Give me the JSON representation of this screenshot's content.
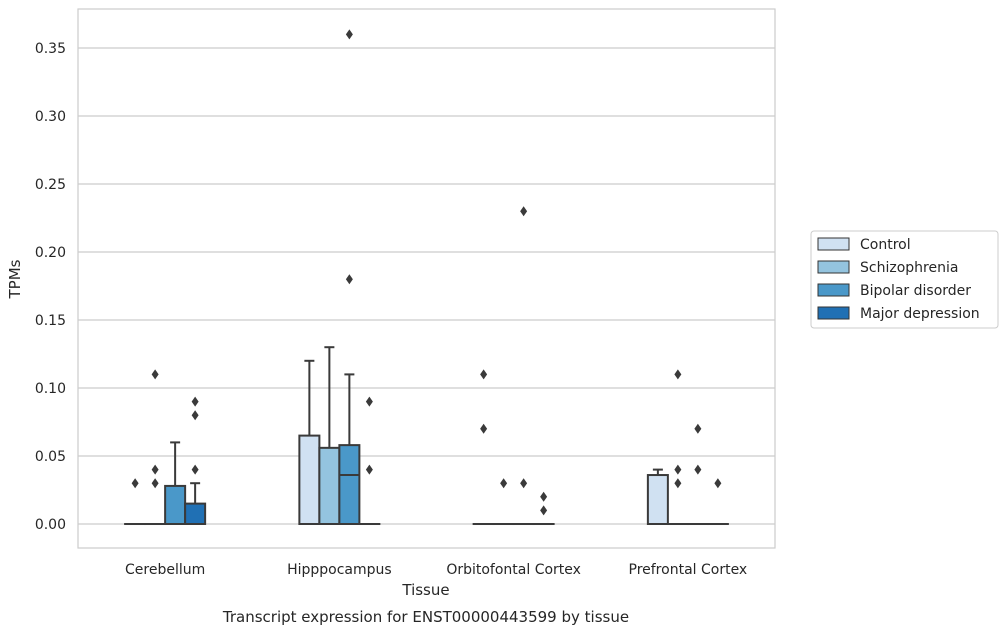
{
  "chart_data": {
    "type": "box",
    "title": "",
    "caption": "Transcript expression for ENST00000443599 by tissue",
    "xlabel": "Tissue",
    "ylabel": "TPMs",
    "ylim": [
      -0.018,
      0.378
    ],
    "yticks": [
      "0.00",
      "0.05",
      "0.10",
      "0.15",
      "0.20",
      "0.25",
      "0.30",
      "0.35"
    ],
    "grid": "horizontal",
    "legend_position": "right",
    "categories": [
      "Cerebellum",
      "Hipppocampus",
      "Orbitofontal Cortex",
      "Prefrontal Cortex"
    ],
    "series": [
      {
        "name": "Control",
        "color": "#d0e1f2",
        "boxes": [
          {
            "q1": 0,
            "median": 0,
            "q3": 0,
            "whisker_low": 0,
            "whisker_high": 0,
            "outliers": [
              0.03
            ]
          },
          {
            "q1": 0,
            "median": 0,
            "q3": 0.065,
            "whisker_low": 0,
            "whisker_high": 0.12,
            "outliers": []
          },
          {
            "q1": 0,
            "median": 0,
            "q3": 0,
            "whisker_low": 0,
            "whisker_high": 0,
            "outliers": [
              0.11,
              0.07
            ]
          },
          {
            "q1": 0,
            "median": 0,
            "q3": 0.036,
            "whisker_low": 0,
            "whisker_high": 0.04,
            "outliers": []
          }
        ]
      },
      {
        "name": "Schizophrenia",
        "color": "#94c4df",
        "boxes": [
          {
            "q1": 0,
            "median": 0,
            "q3": 0,
            "whisker_low": 0,
            "whisker_high": 0,
            "outliers": [
              0.11,
              0.04,
              0.03
            ]
          },
          {
            "q1": 0,
            "median": 0,
            "q3": 0.056,
            "whisker_low": 0,
            "whisker_high": 0.13,
            "outliers": []
          },
          {
            "q1": 0,
            "median": 0,
            "q3": 0,
            "whisker_low": 0,
            "whisker_high": 0,
            "outliers": [
              0.03
            ]
          },
          {
            "q1": 0,
            "median": 0,
            "q3": 0,
            "whisker_low": 0,
            "whisker_high": 0,
            "outliers": [
              0.11,
              0.04,
              0.03
            ]
          }
        ]
      },
      {
        "name": "Bipolar disorder",
        "color": "#4a98c9",
        "boxes": [
          {
            "q1": 0,
            "median": 0,
            "q3": 0.028,
            "whisker_low": 0,
            "whisker_high": 0.06,
            "outliers": []
          },
          {
            "q1": 0,
            "median": 0.036,
            "q3": 0.058,
            "whisker_low": 0,
            "whisker_high": 0.11,
            "outliers": [
              0.36,
              0.18
            ]
          },
          {
            "q1": 0,
            "median": 0,
            "q3": 0,
            "whisker_low": 0,
            "whisker_high": 0,
            "outliers": [
              0.23,
              0.03
            ]
          },
          {
            "q1": 0,
            "median": 0,
            "q3": 0,
            "whisker_low": 0,
            "whisker_high": 0,
            "outliers": [
              0.07,
              0.04
            ]
          }
        ]
      },
      {
        "name": "Major depression",
        "color": "#2070b4",
        "boxes": [
          {
            "q1": 0,
            "median": 0,
            "q3": 0.015,
            "whisker_low": 0,
            "whisker_high": 0.03,
            "outliers": [
              0.09,
              0.08,
              0.04
            ]
          },
          {
            "q1": 0,
            "median": 0,
            "q3": 0,
            "whisker_low": 0,
            "whisker_high": 0,
            "outliers": [
              0.09,
              0.04
            ]
          },
          {
            "q1": 0,
            "median": 0,
            "q3": 0,
            "whisker_low": 0,
            "whisker_high": 0,
            "outliers": [
              0.02,
              0.01
            ]
          },
          {
            "q1": 0,
            "median": 0,
            "q3": 0,
            "whisker_low": 0,
            "whisker_high": 0,
            "outliers": [
              0.03
            ]
          }
        ]
      }
    ]
  }
}
